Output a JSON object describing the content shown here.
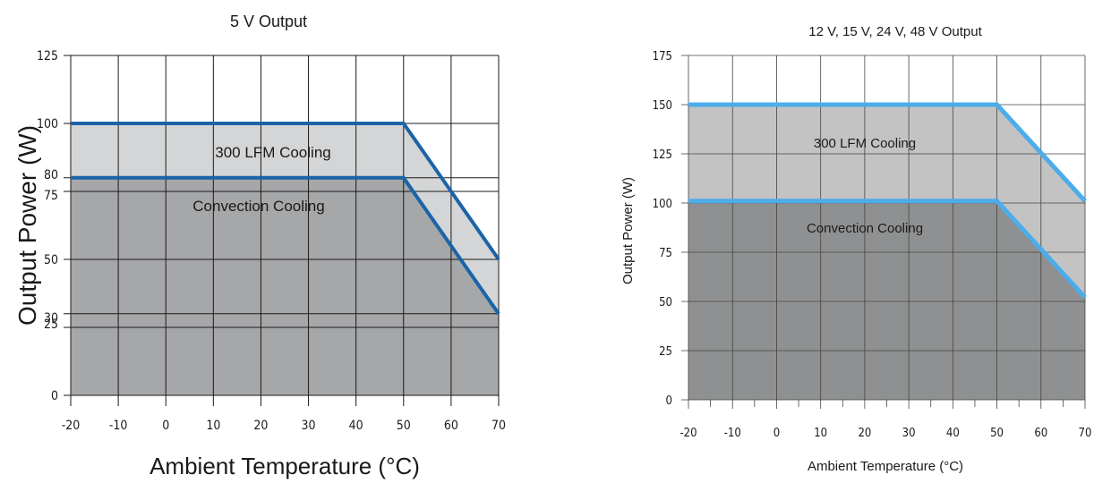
{
  "chart_data": [
    {
      "type": "area",
      "title": "5 V Output",
      "xlabel": "Ambient Temperature (°C)",
      "ylabel": "Output Power (W)",
      "xlim": [
        -20,
        70
      ],
      "ylim": [
        0,
        125
      ],
      "x_ticks": [
        -20,
        -10,
        0,
        10,
        20,
        30,
        40,
        50,
        60,
        70
      ],
      "y_ticks": [
        0,
        25,
        30,
        50,
        75,
        80,
        100,
        125
      ],
      "grid": true,
      "colors": {
        "fill_lower": "#a6a7a9",
        "fill_upper": "#d4d5d6",
        "line": "#1a64a8"
      },
      "series": [
        {
          "name": "300 LFM Cooling",
          "x": [
            -20,
            50,
            70
          ],
          "y": [
            100,
            100,
            50
          ]
        },
        {
          "name": "Convection Cooling",
          "x": [
            -20,
            50,
            70
          ],
          "y": [
            80,
            80,
            30
          ]
        }
      ]
    },
    {
      "type": "area",
      "title": "12 V, 15 V, 24 V, 48 V Output",
      "xlabel": "Ambient Temperature (°C)",
      "ylabel": "Output Power (W)",
      "xlim": [
        -20,
        70
      ],
      "ylim": [
        0,
        175
      ],
      "x_ticks": [
        -20,
        -10,
        0,
        10,
        20,
        30,
        40,
        50,
        60,
        70
      ],
      "y_ticks": [
        0,
        25,
        50,
        75,
        100,
        125,
        150,
        175
      ],
      "grid": true,
      "colors": {
        "fill_lower": "#8f9091",
        "fill_upper": "#c3c3c4",
        "line": "#4badea"
      },
      "series": [
        {
          "name": "300 LFM Cooling",
          "x": [
            -20,
            50,
            70
          ],
          "y": [
            150,
            150,
            101
          ]
        },
        {
          "name": "Convection Cooling",
          "x": [
            -20,
            50,
            70
          ],
          "y": [
            101,
            101,
            52
          ]
        }
      ]
    }
  ]
}
